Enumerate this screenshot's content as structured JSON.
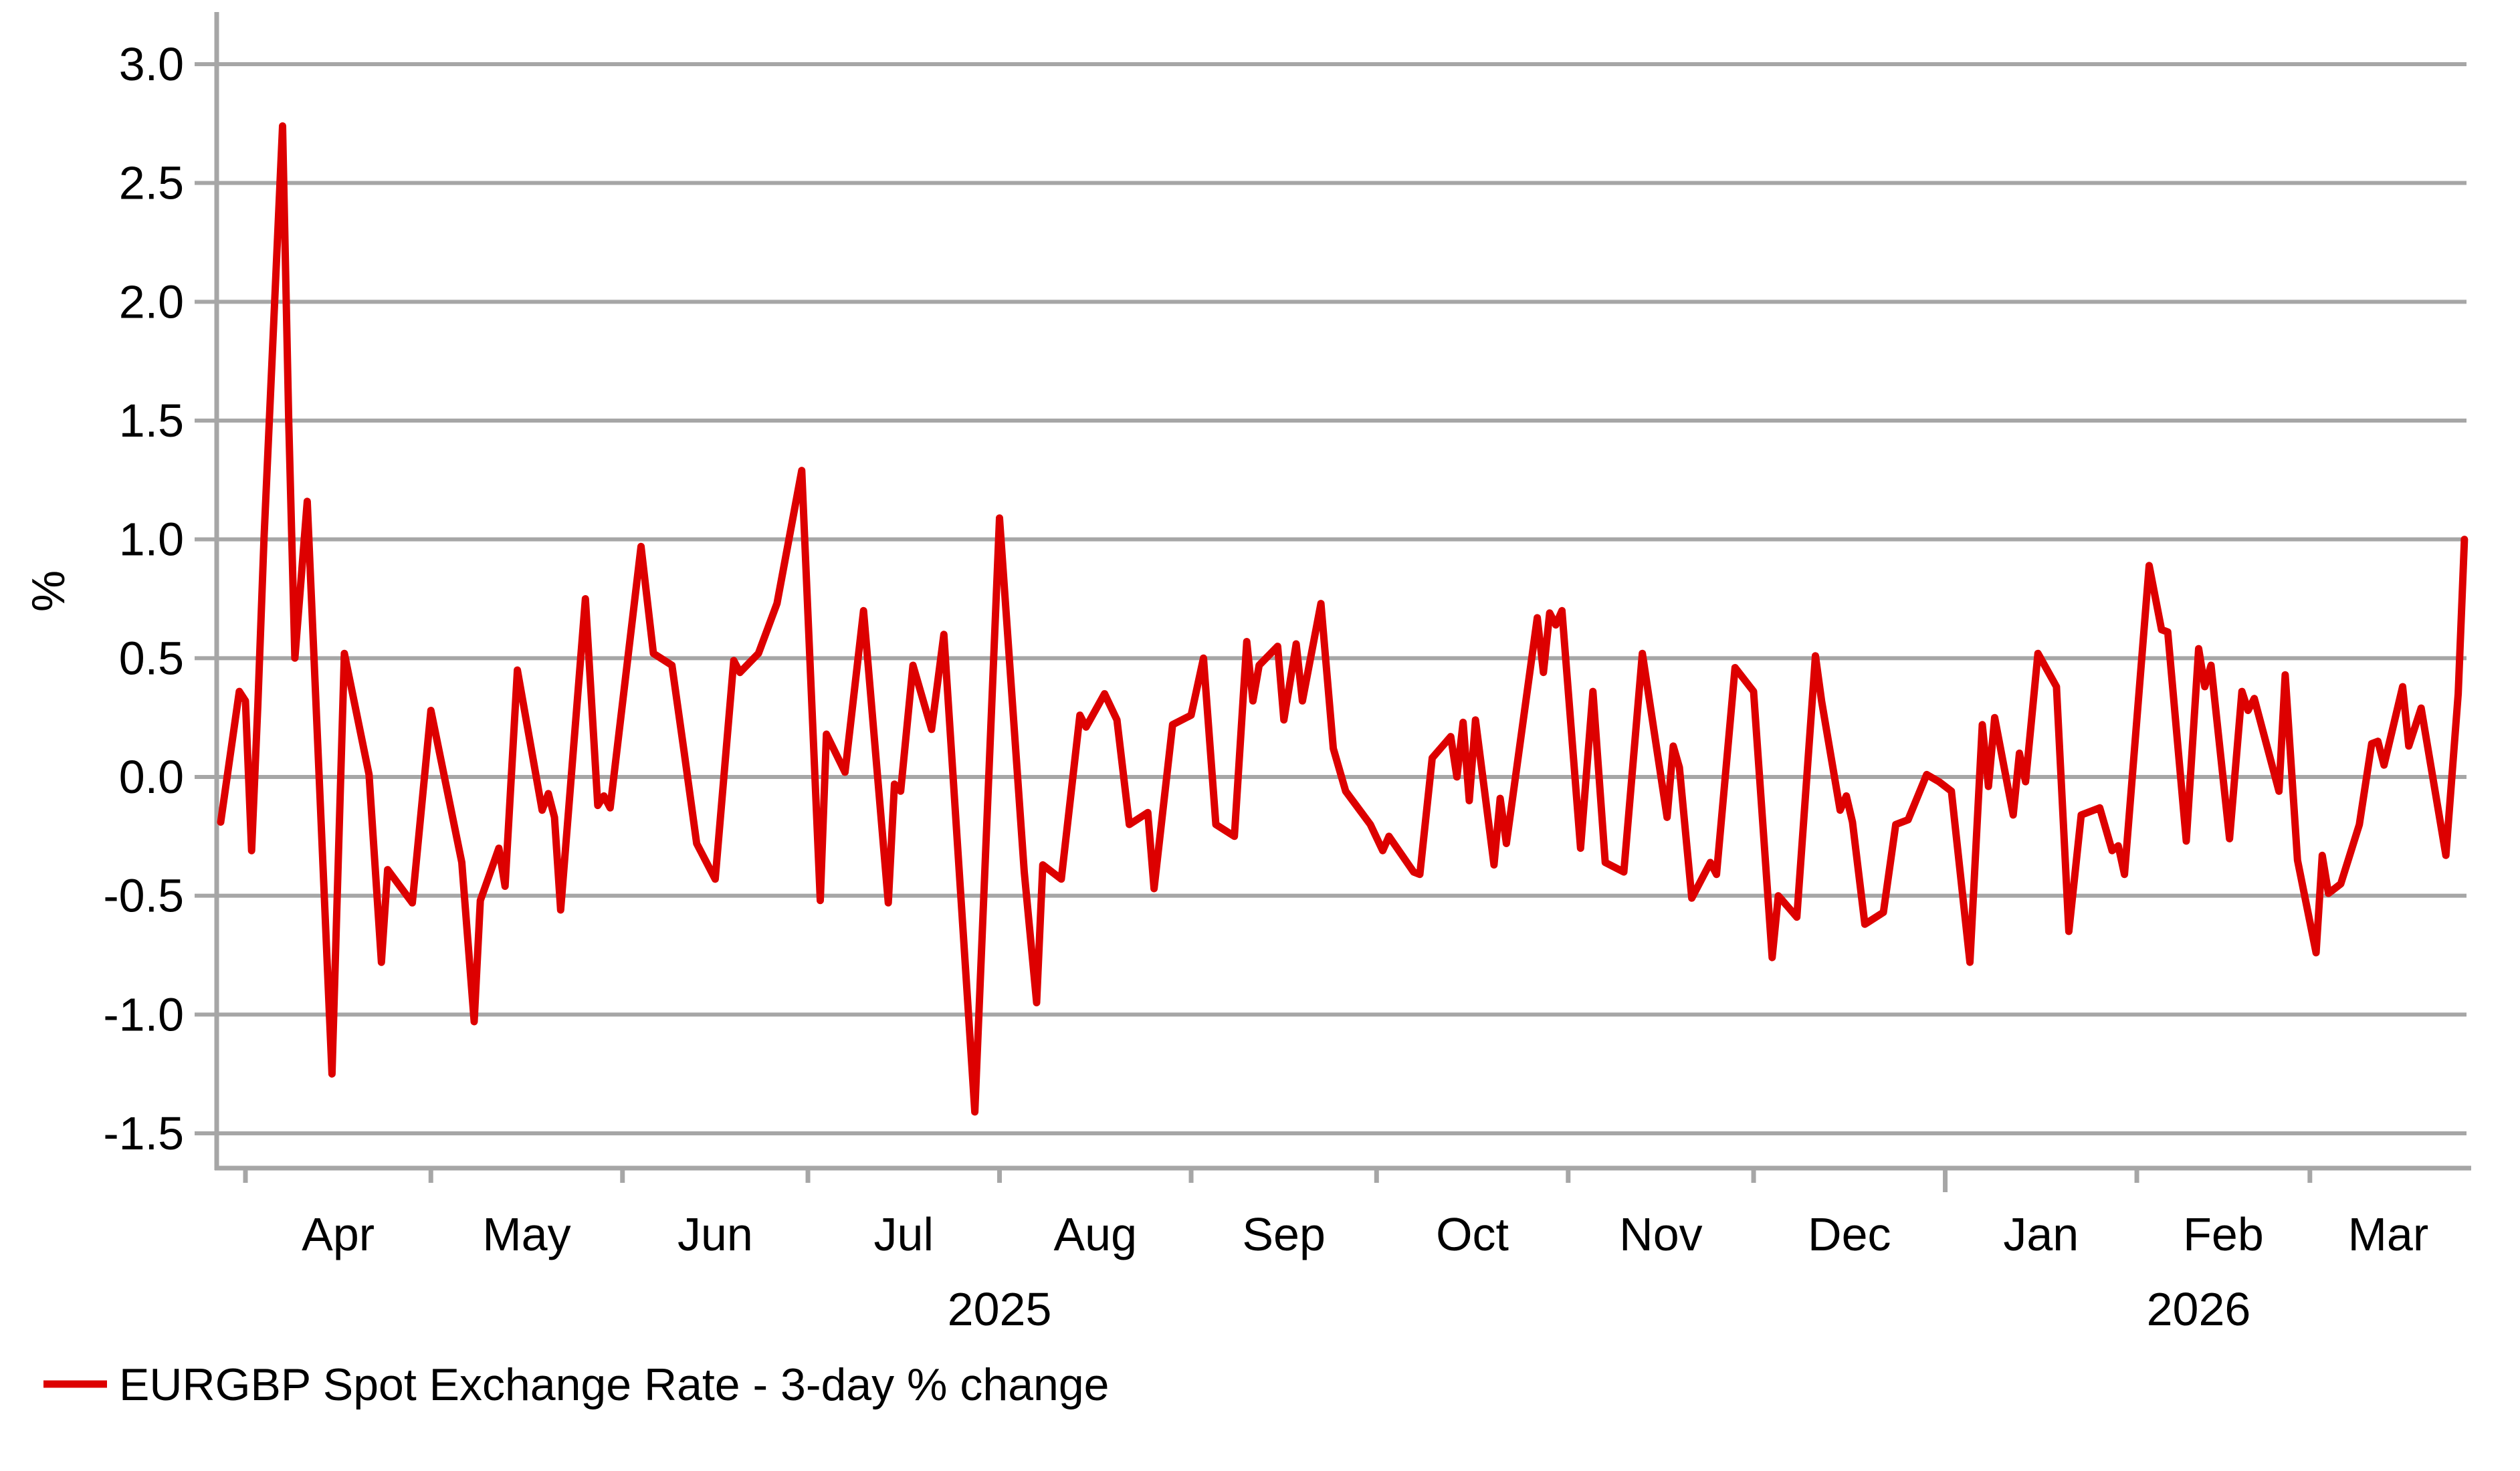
{
  "chart_data": {
    "type": "line",
    "title": "",
    "xlabel": "",
    "ylabel": "%",
    "grid": "horizontal",
    "legend_position": "bottom-left",
    "colors": {
      "series": "#dd0000",
      "grid": "#a6a6a6",
      "axis": "#a6a6a6",
      "text": "#000000"
    },
    "ylim": [
      -1.65,
      3.2
    ],
    "yticks": [
      3.0,
      2.5,
      2.0,
      1.5,
      1.0,
      0.5,
      0.0,
      -0.5,
      -1.0,
      -1.5
    ],
    "ytick_labels": [
      "3.0",
      "2.5",
      "2.0",
      "1.5",
      "1.0",
      "0.5",
      "0.0",
      "-0.5",
      "-1.0",
      "-1.5"
    ],
    "x_months": [
      {
        "label": "Apr",
        "start": "2025-04-01",
        "year_start": false
      },
      {
        "label": "May",
        "start": "2025-05-01",
        "year_start": false
      },
      {
        "label": "Jun",
        "start": "2025-06-01",
        "year_start": false
      },
      {
        "label": "Jul",
        "start": "2025-07-01",
        "year_start": false
      },
      {
        "label": "Aug",
        "start": "2025-08-01",
        "year_start": false
      },
      {
        "label": "Sep",
        "start": "2025-09-01",
        "year_start": false
      },
      {
        "label": "Oct",
        "start": "2025-10-01",
        "year_start": false
      },
      {
        "label": "Nov",
        "start": "2025-11-01",
        "year_start": false
      },
      {
        "label": "Dec",
        "start": "2025-12-01",
        "year_start": false
      },
      {
        "label": "Jan",
        "start": "2026-01-01",
        "year_start": true
      },
      {
        "label": "Feb",
        "start": "2026-02-01",
        "year_start": false
      },
      {
        "label": "Mar",
        "start": "2026-03-01",
        "year_start": false
      }
    ],
    "x_years": [
      {
        "label": "2025",
        "center": "2025-08-01"
      },
      {
        "label": "2026",
        "center": "2026-02-11"
      }
    ],
    "series": [
      {
        "name": "EURGBP Spot Exchange Rate - 3-day % change",
        "color": "#dd0000",
        "points": [
          [
            "2025-03-28",
            -0.19
          ],
          [
            "2025-03-31",
            0.36
          ],
          [
            "2025-04-01",
            0.32
          ],
          [
            "2025-04-02",
            -0.31
          ],
          [
            "2025-04-03",
            0.3
          ],
          [
            "2025-04-04",
            1.0
          ],
          [
            "2025-04-07",
            2.74
          ],
          [
            "2025-04-08",
            1.5
          ],
          [
            "2025-04-09",
            0.5
          ],
          [
            "2025-04-11",
            1.16
          ],
          [
            "2025-04-15",
            -1.25
          ],
          [
            "2025-04-17",
            0.52
          ],
          [
            "2025-04-21",
            0.01
          ],
          [
            "2025-04-23",
            -0.78
          ],
          [
            "2025-04-24",
            -0.39
          ],
          [
            "2025-04-28",
            -0.53
          ],
          [
            "2025-05-01",
            0.28
          ],
          [
            "2025-05-06",
            -0.36
          ],
          [
            "2025-05-08",
            -1.03
          ],
          [
            "2025-05-09",
            -0.52
          ],
          [
            "2025-05-12",
            -0.3
          ],
          [
            "2025-05-13",
            -0.46
          ],
          [
            "2025-05-15",
            0.45
          ],
          [
            "2025-05-19",
            -0.14
          ],
          [
            "2025-05-20",
            -0.07
          ],
          [
            "2025-05-21",
            -0.17
          ],
          [
            "2025-05-22",
            -0.56
          ],
          [
            "2025-05-26",
            0.75
          ],
          [
            "2025-05-28",
            -0.12
          ],
          [
            "2025-05-29",
            -0.08
          ],
          [
            "2025-05-30",
            -0.13
          ],
          [
            "2025-06-04",
            0.97
          ],
          [
            "2025-06-06",
            0.52
          ],
          [
            "2025-06-09",
            0.47
          ],
          [
            "2025-06-11",
            0.1
          ],
          [
            "2025-06-13",
            -0.28
          ],
          [
            "2025-06-16",
            -0.43
          ],
          [
            "2025-06-19",
            0.49
          ],
          [
            "2025-06-20",
            0.44
          ],
          [
            "2025-06-23",
            0.52
          ],
          [
            "2025-06-26",
            0.73
          ],
          [
            "2025-06-30",
            1.29
          ],
          [
            "2025-07-03",
            -0.52
          ],
          [
            "2025-07-04",
            0.18
          ],
          [
            "2025-07-07",
            0.02
          ],
          [
            "2025-07-10",
            0.7
          ],
          [
            "2025-07-14",
            -0.53
          ],
          [
            "2025-07-15",
            -0.03
          ],
          [
            "2025-07-16",
            -0.06
          ],
          [
            "2025-07-18",
            0.47
          ],
          [
            "2025-07-21",
            0.2
          ],
          [
            "2025-07-23",
            0.6
          ],
          [
            "2025-07-28",
            -1.41
          ],
          [
            "2025-08-01",
            1.09
          ],
          [
            "2025-08-05",
            -0.4
          ],
          [
            "2025-08-07",
            -0.95
          ],
          [
            "2025-08-08",
            -0.37
          ],
          [
            "2025-08-11",
            -0.43
          ],
          [
            "2025-08-14",
            0.26
          ],
          [
            "2025-08-15",
            0.21
          ],
          [
            "2025-08-18",
            0.35
          ],
          [
            "2025-08-20",
            0.24
          ],
          [
            "2025-08-22",
            -0.2
          ],
          [
            "2025-08-25",
            -0.15
          ],
          [
            "2025-08-26",
            -0.47
          ],
          [
            "2025-08-29",
            0.22
          ],
          [
            "2025-09-01",
            0.26
          ],
          [
            "2025-09-03",
            0.5
          ],
          [
            "2025-09-05",
            -0.2
          ],
          [
            "2025-09-08",
            -0.25
          ],
          [
            "2025-09-10",
            0.57
          ],
          [
            "2025-09-11",
            0.32
          ],
          [
            "2025-09-12",
            0.47
          ],
          [
            "2025-09-15",
            0.55
          ],
          [
            "2025-09-16",
            0.24
          ],
          [
            "2025-09-18",
            0.56
          ],
          [
            "2025-09-19",
            0.32
          ],
          [
            "2025-09-22",
            0.73
          ],
          [
            "2025-09-24",
            0.12
          ],
          [
            "2025-09-26",
            -0.06
          ],
          [
            "2025-09-30",
            -0.2
          ],
          [
            "2025-10-02",
            -0.31
          ],
          [
            "2025-10-03",
            -0.25
          ],
          [
            "2025-10-07",
            -0.4
          ],
          [
            "2025-10-08",
            -0.41
          ],
          [
            "2025-10-10",
            0.08
          ],
          [
            "2025-10-13",
            0.17
          ],
          [
            "2025-10-14",
            0.0
          ],
          [
            "2025-10-15",
            0.23
          ],
          [
            "2025-10-16",
            -0.1
          ],
          [
            "2025-10-17",
            0.24
          ],
          [
            "2025-10-20",
            -0.37
          ],
          [
            "2025-10-21",
            -0.09
          ],
          [
            "2025-10-22",
            -0.28
          ],
          [
            "2025-10-27",
            0.67
          ],
          [
            "2025-10-28",
            0.44
          ],
          [
            "2025-10-29",
            0.69
          ],
          [
            "2025-10-30",
            0.64
          ],
          [
            "2025-10-31",
            0.7
          ],
          [
            "2025-11-03",
            -0.3
          ],
          [
            "2025-11-05",
            0.36
          ],
          [
            "2025-11-07",
            -0.36
          ],
          [
            "2025-11-10",
            -0.4
          ],
          [
            "2025-11-13",
            0.52
          ],
          [
            "2025-11-17",
            -0.17
          ],
          [
            "2025-11-18",
            0.13
          ],
          [
            "2025-11-19",
            0.04
          ],
          [
            "2025-11-21",
            -0.51
          ],
          [
            "2025-11-24",
            -0.36
          ],
          [
            "2025-11-25",
            -0.41
          ],
          [
            "2025-11-28",
            0.46
          ],
          [
            "2025-12-01",
            0.36
          ],
          [
            "2025-12-04",
            -0.76
          ],
          [
            "2025-12-05",
            -0.5
          ],
          [
            "2025-12-08",
            -0.59
          ],
          [
            "2025-12-11",
            0.51
          ],
          [
            "2025-12-12",
            0.32
          ],
          [
            "2025-12-15",
            -0.14
          ],
          [
            "2025-12-16",
            -0.08
          ],
          [
            "2025-12-17",
            -0.19
          ],
          [
            "2025-12-19",
            -0.62
          ],
          [
            "2025-12-22",
            -0.57
          ],
          [
            "2025-12-24",
            -0.2
          ],
          [
            "2025-12-26",
            -0.18
          ],
          [
            "2025-12-29",
            0.01
          ],
          [
            "2025-12-31",
            -0.02
          ],
          [
            "2026-01-02",
            -0.06
          ],
          [
            "2026-01-05",
            -0.78
          ],
          [
            "2026-01-07",
            0.22
          ],
          [
            "2026-01-08",
            -0.04
          ],
          [
            "2026-01-09",
            0.25
          ],
          [
            "2026-01-12",
            -0.16
          ],
          [
            "2026-01-13",
            0.1
          ],
          [
            "2026-01-14",
            -0.02
          ],
          [
            "2026-01-16",
            0.52
          ],
          [
            "2026-01-19",
            0.38
          ],
          [
            "2026-01-21",
            -0.65
          ],
          [
            "2026-01-23",
            -0.16
          ],
          [
            "2026-01-26",
            -0.13
          ],
          [
            "2026-01-28",
            -0.31
          ],
          [
            "2026-01-29",
            -0.29
          ],
          [
            "2026-01-30",
            -0.41
          ],
          [
            "2026-02-03",
            0.89
          ],
          [
            "2026-02-05",
            0.62
          ],
          [
            "2026-02-06",
            0.61
          ],
          [
            "2026-02-09",
            -0.27
          ],
          [
            "2026-02-11",
            0.54
          ],
          [
            "2026-02-12",
            0.38
          ],
          [
            "2026-02-13",
            0.47
          ],
          [
            "2026-02-16",
            -0.26
          ],
          [
            "2026-02-18",
            0.36
          ],
          [
            "2026-02-19",
            0.28
          ],
          [
            "2026-02-20",
            0.33
          ],
          [
            "2026-02-24",
            -0.06
          ],
          [
            "2026-02-25",
            0.43
          ],
          [
            "2026-02-27",
            -0.35
          ],
          [
            "2026-03-02",
            -0.74
          ],
          [
            "2026-03-03",
            -0.33
          ],
          [
            "2026-03-04",
            -0.49
          ],
          [
            "2026-03-06",
            -0.45
          ],
          [
            "2026-03-09",
            -0.2
          ],
          [
            "2026-03-11",
            0.14
          ],
          [
            "2026-03-12",
            0.15
          ],
          [
            "2026-03-13",
            0.05
          ],
          [
            "2026-03-16",
            0.38
          ],
          [
            "2026-03-17",
            0.13
          ],
          [
            "2026-03-19",
            0.29
          ],
          [
            "2026-03-23",
            -0.33
          ],
          [
            "2026-03-25",
            0.35
          ],
          [
            "2026-03-26",
            1.0
          ]
        ]
      }
    ]
  },
  "legend": {
    "label": "EURGBP Spot Exchange Rate - 3-day % change",
    "swatch_color": "#dd0000"
  },
  "axis_titles": {
    "y": "%"
  }
}
